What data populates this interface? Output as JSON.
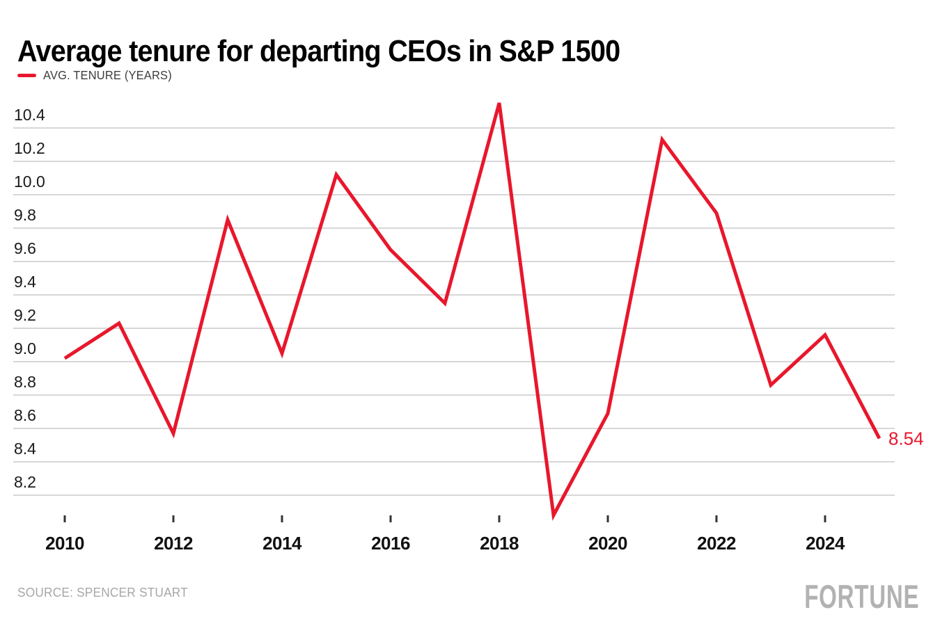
{
  "header": {
    "title": "Average tenure for departing CEOs in S&P 1500"
  },
  "legend": {
    "label": "AVG. TENURE (YEARS)"
  },
  "footer": {
    "source": "SOURCE: SPENCER STUART",
    "brand": "FORTUNE"
  },
  "colors": {
    "accent_red": "#e8172c",
    "gridline": "#d7d7d7",
    "axis_text": "#1a1a1a",
    "tick_mark": "#333333",
    "muted_text": "#a7a7a7"
  },
  "chart_data": {
    "type": "line",
    "title": "Average tenure for departing CEOs in S&P 1500",
    "series": [
      {
        "name": "AVG. TENURE (YEARS)",
        "x": [
          2010,
          2011,
          2012,
          2013,
          2014,
          2015,
          2016,
          2017,
          2018,
          2019,
          2020,
          2021,
          2022,
          2023,
          2024,
          2025
        ],
        "values": [
          9.02,
          9.23,
          8.57,
          9.85,
          9.05,
          10.12,
          9.67,
          9.35,
          10.55,
          8.08,
          8.69,
          10.33,
          9.89,
          8.86,
          9.16,
          8.54
        ]
      }
    ],
    "end_label": "8.54",
    "y_ticks": [
      8.2,
      8.4,
      8.6,
      8.8,
      9.0,
      9.2,
      9.4,
      9.6,
      9.8,
      10.0,
      10.2,
      10.4
    ],
    "x_ticks": [
      2010,
      2012,
      2014,
      2016,
      2018,
      2020,
      2022,
      2024
    ],
    "xlim": [
      2010,
      2025
    ],
    "ylim": [
      8.0,
      10.6
    ],
    "grid": "horizontal-only",
    "legend_position": "top-left",
    "line_color": "#e8172c",
    "xlabel": "",
    "ylabel": ""
  }
}
